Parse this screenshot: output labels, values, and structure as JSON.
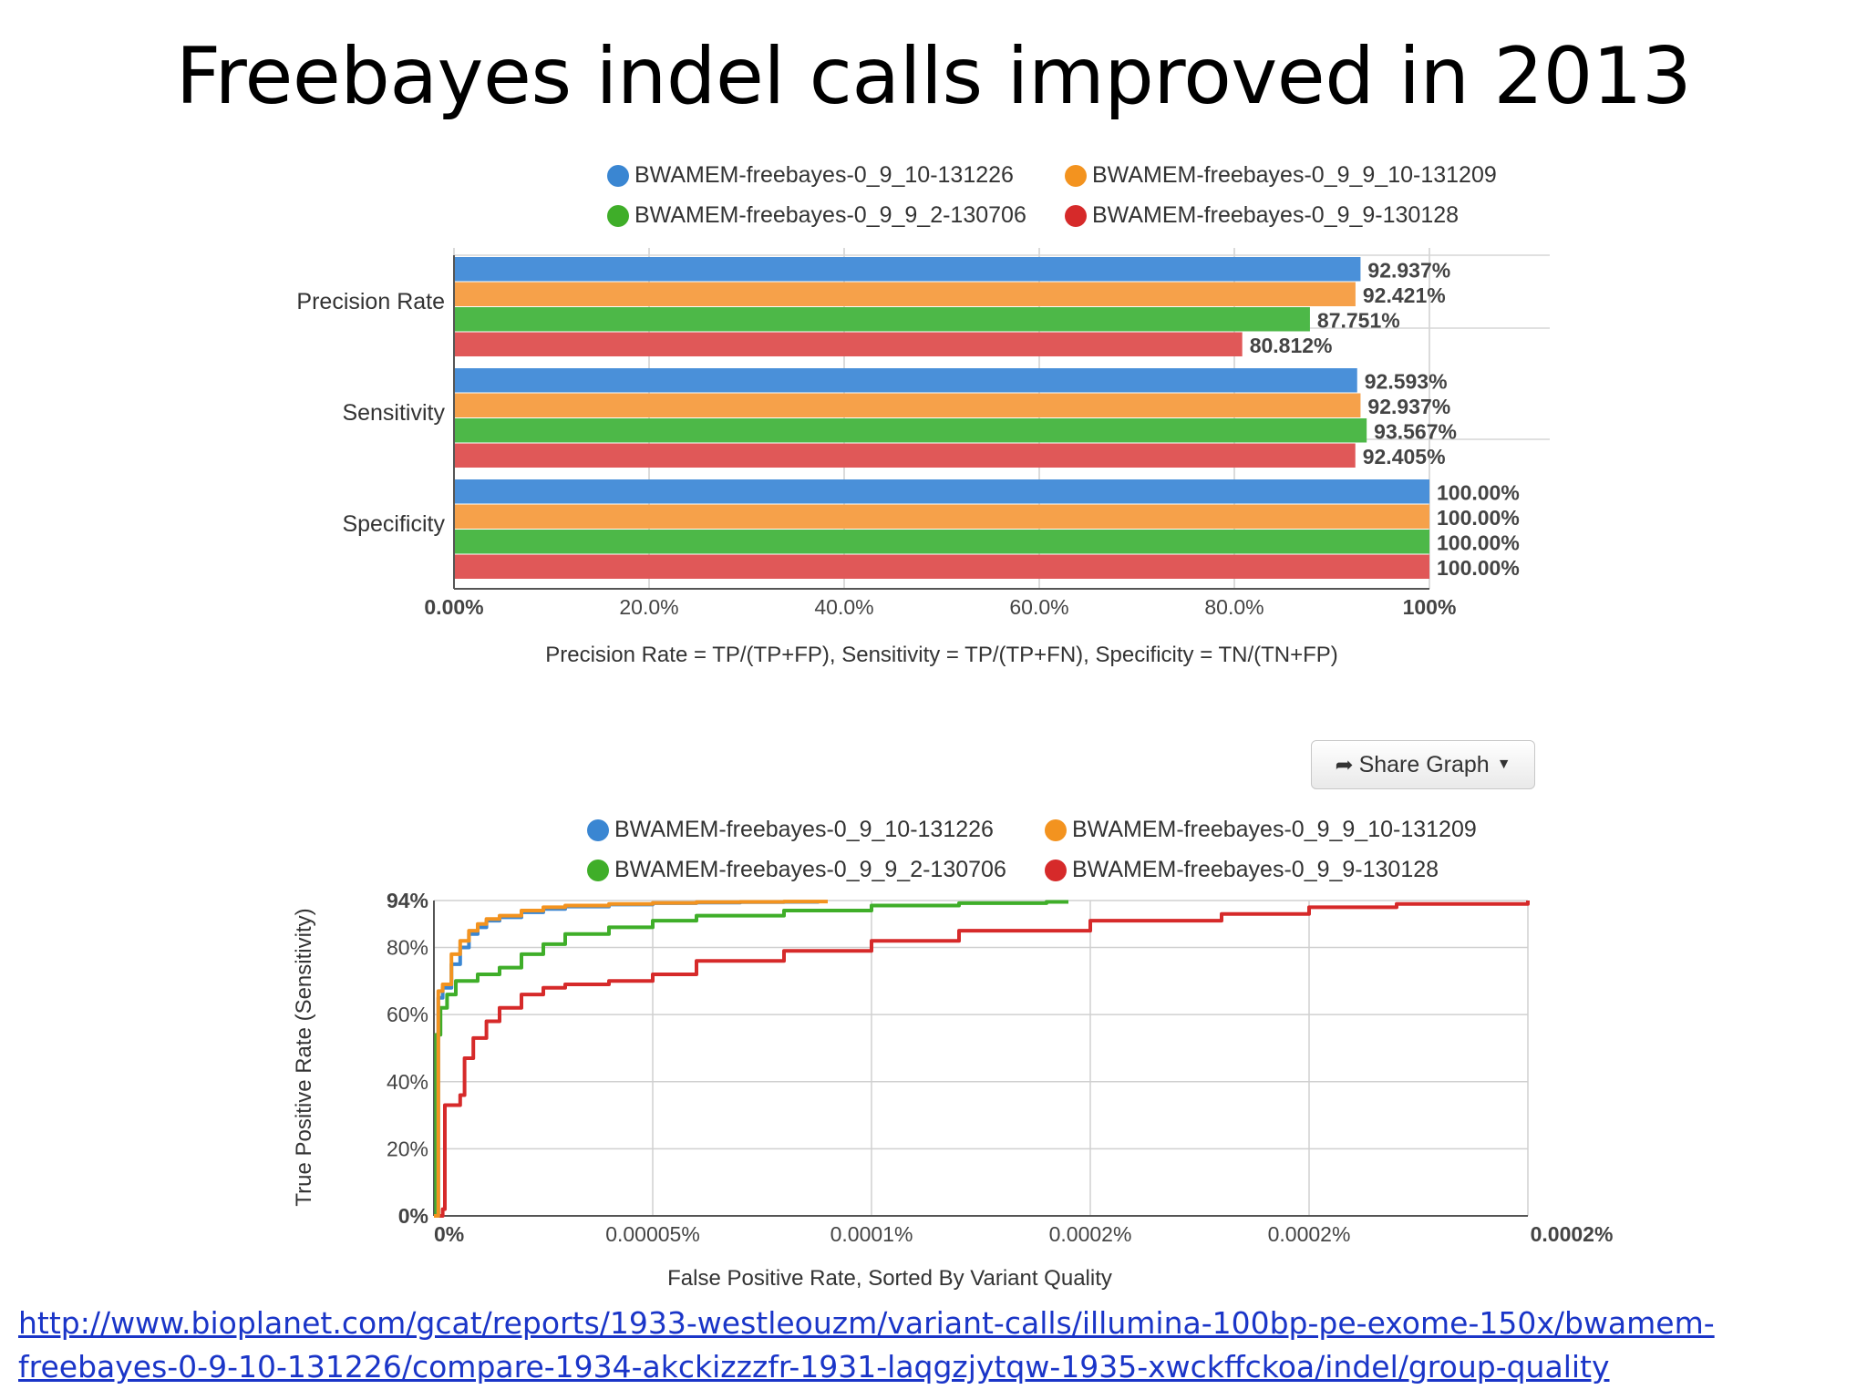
{
  "slide": {
    "title": "Freebayes indel calls improved in 2013",
    "source_link_lines": [
      "http://www.bioplanet.com/gcat/reports/1933-westleouzm/variant-calls/illumina-100bp-pe-exome-150x/bwamem-",
      "freebayes-0-9-10-131226/compare-1934-akckizzzfr-1931-laqgzjytqw-1935-xwckffckoa/indel/group-quality"
    ]
  },
  "colors": {
    "blue": "#4a90d9",
    "orange": "#f6a14a",
    "green": "#4db848",
    "red": "#e05858",
    "line_blue": "#3a86d2",
    "line_orange": "#f3931f",
    "line_green": "#3fae29",
    "line_red": "#d62a2a"
  },
  "share_graph": {
    "label": "Share Graph",
    "icon": "share-arrow-icon",
    "caret": "caret-down-icon"
  },
  "chart_data": [
    {
      "type": "bar",
      "orientation": "horizontal",
      "categories": [
        "Precision Rate",
        "Sensitivity",
        "Specificity"
      ],
      "series": [
        {
          "name": "BWAMEM-freebayes-0_9_10-131226",
          "color": "blue",
          "values": [
            92.937,
            92.593,
            100.0
          ],
          "labels": [
            "92.937%",
            "92.593%",
            "100.00%"
          ]
        },
        {
          "name": "BWAMEM-freebayes-0_9_9_10-131209",
          "color": "orange",
          "values": [
            92.421,
            92.937,
            100.0
          ],
          "labels": [
            "92.421%",
            "92.937%",
            "100.00%"
          ]
        },
        {
          "name": "BWAMEM-freebayes-0_9_9_2-130706",
          "color": "green",
          "values": [
            87.751,
            93.567,
            100.0
          ],
          "labels": [
            "87.751%",
            "93.567%",
            "100.00%"
          ]
        },
        {
          "name": "BWAMEM-freebayes-0_9_9-130128",
          "color": "red",
          "values": [
            80.812,
            92.405,
            100.0
          ],
          "labels": [
            "80.812%",
            "92.405%",
            "100.00%"
          ]
        }
      ],
      "xlim": [
        0,
        100
      ],
      "xticks": [
        0,
        20,
        40,
        60,
        80,
        100
      ],
      "xtick_labels": [
        "0.00%",
        "20.0%",
        "40.0%",
        "60.0%",
        "80.0%",
        "100%"
      ],
      "xlabel": "Precision Rate = TP/(TP+FP), Sensitivity = TP/(TP+FN), Specificity = TN/(TN+FP)",
      "grid": true,
      "legend": "top"
    },
    {
      "type": "line",
      "xlabel": "False Positive Rate, Sorted By Variant Quality",
      "ylabel": "True Positive Rate (Sensitivity)",
      "xlim": [
        0,
        0.00025
      ],
      "ylim": [
        0,
        94
      ],
      "xticks": [
        0,
        5e-05,
        0.0001,
        0.00015,
        0.0002,
        0.00025
      ],
      "xtick_labels": [
        "0%",
        "0.00005%",
        "0.0001%",
        "0.0002%",
        "0.0002%",
        "0.0002%"
      ],
      "yticks": [
        0,
        20,
        40,
        60,
        80,
        94
      ],
      "ytick_labels": [
        "0%",
        "20%",
        "40%",
        "60%",
        "80%",
        "94%"
      ],
      "grid": true,
      "legend": "top",
      "series": [
        {
          "name": "BWAMEM-freebayes-0_9_10-131226",
          "color": "line_blue",
          "x": [
            0,
            1e-06,
            2e-06,
            4e-06,
            6e-06,
            8e-06,
            1e-05,
            1.2e-05,
            1.5e-05,
            2e-05,
            2.5e-05,
            3e-05,
            4e-05,
            5e-05,
            6e-05,
            7e-05,
            8e-05,
            8.8e-05
          ],
          "y": [
            0,
            65,
            68,
            75,
            80,
            84,
            86,
            88,
            89,
            90.5,
            91.5,
            92.2,
            92.8,
            93.2,
            93.4,
            93.5,
            93.6,
            93.6
          ]
        },
        {
          "name": "BWAMEM-freebayes-0_9_9_10-131209",
          "color": "line_orange",
          "x": [
            0,
            1e-06,
            2e-06,
            4e-06,
            6e-06,
            8e-06,
            1e-05,
            1.2e-05,
            1.5e-05,
            2e-05,
            2.5e-05,
            3e-05,
            4e-05,
            5e-05,
            6e-05,
            7e-05,
            8e-05,
            9e-05
          ],
          "y": [
            0,
            67,
            69,
            78,
            82,
            85,
            87,
            88.5,
            89.5,
            91,
            92,
            92.5,
            93,
            93.3,
            93.5,
            93.6,
            93.7,
            93.7
          ]
        },
        {
          "name": "BWAMEM-freebayes-0_9_9_2-130706",
          "color": "line_green",
          "x": [
            0,
            5e-07,
            1.5e-06,
            3e-06,
            5e-06,
            1e-05,
            1.5e-05,
            2e-05,
            2.5e-05,
            3e-05,
            4e-05,
            5e-05,
            6e-05,
            8e-05,
            0.0001,
            0.00012,
            0.00014,
            0.000145
          ],
          "y": [
            0,
            54,
            62,
            66,
            70,
            72,
            74,
            78,
            81,
            84,
            86,
            88,
            89.5,
            91,
            92.5,
            93.2,
            93.6,
            93.6
          ]
        },
        {
          "name": "BWAMEM-freebayes-0_9_9-130128",
          "color": "line_red",
          "x": [
            0,
            2e-06,
            2.5e-06,
            6e-06,
            7e-06,
            9e-06,
            1.2e-05,
            1.5e-05,
            2e-05,
            2.5e-05,
            3e-05,
            4e-05,
            5e-05,
            6e-05,
            8e-05,
            0.0001,
            0.00012,
            0.00015,
            0.00018,
            0.0002,
            0.00022,
            0.00025
          ],
          "y": [
            0,
            2,
            33,
            36,
            47,
            53,
            58,
            62,
            66,
            68,
            69,
            70,
            72,
            76,
            79,
            82,
            85,
            88,
            90,
            92,
            93,
            94
          ]
        }
      ]
    }
  ]
}
